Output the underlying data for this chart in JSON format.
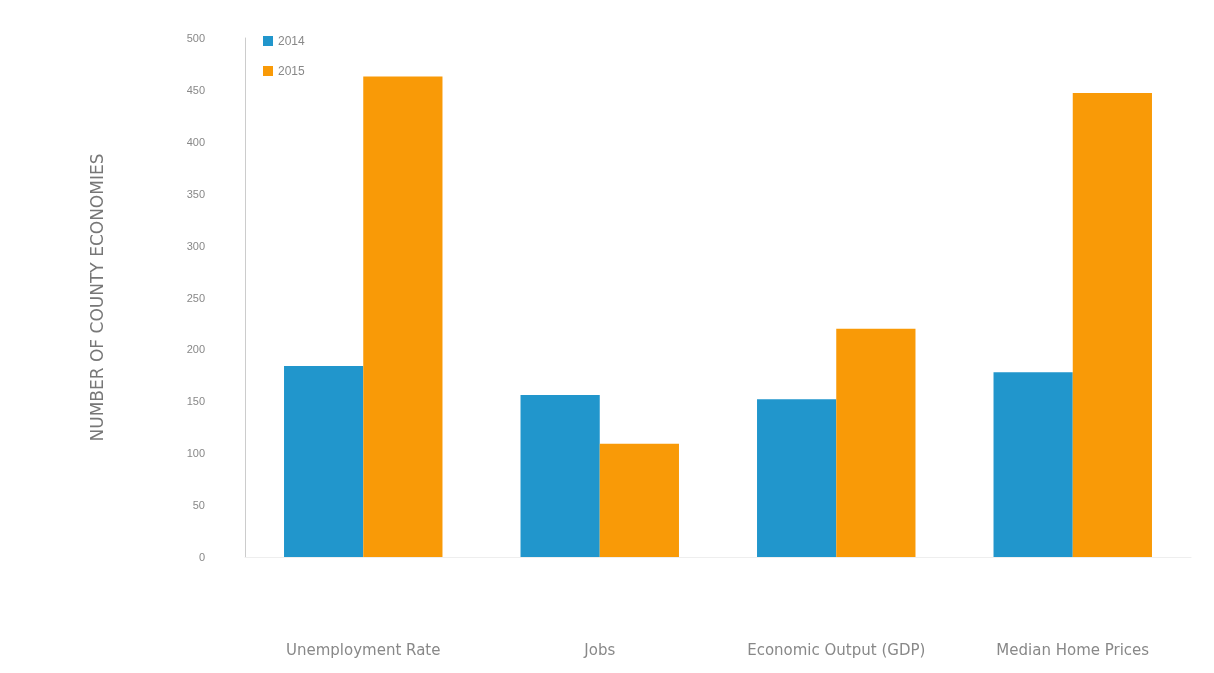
{
  "chart_data": {
    "type": "bar",
    "ylabel": "NUMBER OF COUNTY ECONOMIES",
    "categories": [
      "Unemployment Rate",
      "Jobs",
      "Economic Output (GDP)",
      "Median Home Prices"
    ],
    "series": [
      {
        "name": "2014",
        "color": "#2196cc",
        "values": [
          184,
          156,
          152,
          178
        ]
      },
      {
        "name": "2015",
        "color": "#f99a07",
        "values": [
          463,
          109,
          220,
          447
        ]
      }
    ],
    "ylim": [
      0,
      500
    ],
    "yticks": [
      0,
      50,
      100,
      150,
      200,
      250,
      300,
      350,
      400,
      450,
      500
    ],
    "grid": false,
    "legend": "top left"
  }
}
